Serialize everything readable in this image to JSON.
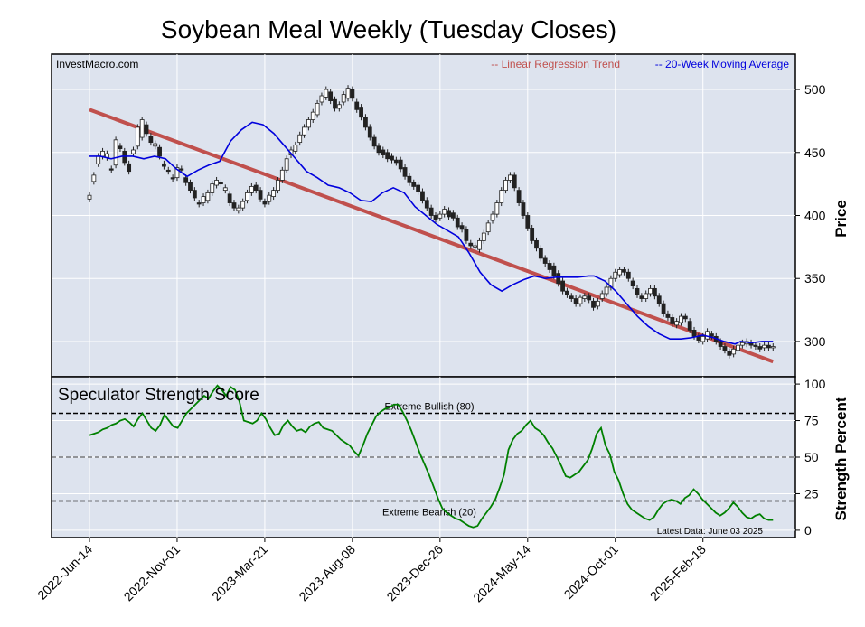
{
  "title": "Soybean Meal Weekly (Tuesday Closes)",
  "watermark": "InvestMacro.com",
  "legend": {
    "regression": "-- Linear Regression Trend",
    "moving_average": "-- 20-Week Moving Average"
  },
  "colors": {
    "background_panel": "#dde3ee",
    "regression": "#c0504d",
    "moving_average": "#0000dd",
    "strength": "#008000",
    "candle_up": "#ffffff",
    "candle_down": "#222222"
  },
  "chart_data": [
    {
      "type": "candlestick",
      "name": "price-panel",
      "ylabel": "Price",
      "ylim": [
        272,
        528
      ],
      "yticks": [
        300,
        350,
        400,
        450,
        500
      ],
      "grid": true,
      "legend_position": "top-right",
      "x_ticks": [
        "2022-Jun-14",
        "2022-Nov-01",
        "2023-Mar-21",
        "2023-Aug-08",
        "2023-Dec-26",
        "2024-May-14",
        "2024-Oct-01",
        "2025-Feb-18"
      ],
      "weeks": 156,
      "regression": {
        "start": 484,
        "end": 284
      },
      "moving_average": [
        [
          0,
          447
        ],
        [
          4,
          447
        ],
        [
          8,
          445
        ],
        [
          12,
          447
        ],
        [
          16,
          447
        ],
        [
          20,
          445
        ],
        [
          24,
          447
        ],
        [
          28,
          445
        ],
        [
          32,
          437
        ],
        [
          36,
          431
        ],
        [
          40,
          436
        ],
        [
          44,
          440
        ],
        [
          48,
          443
        ],
        [
          52,
          459
        ],
        [
          56,
          468
        ],
        [
          60,
          474
        ],
        [
          64,
          472
        ],
        [
          68,
          465
        ],
        [
          72,
          455
        ],
        [
          76,
          445
        ],
        [
          80,
          435
        ],
        [
          84,
          430
        ],
        [
          88,
          424
        ],
        [
          92,
          422
        ],
        [
          96,
          418
        ],
        [
          100,
          412
        ],
        [
          104,
          411
        ],
        [
          108,
          418
        ],
        [
          112,
          422
        ],
        [
          116,
          418
        ],
        [
          120,
          407
        ],
        [
          124,
          400
        ],
        [
          128,
          393
        ],
        [
          132,
          388
        ],
        [
          136,
          383
        ],
        [
          140,
          370
        ],
        [
          144,
          355
        ],
        [
          148,
          345
        ],
        [
          152,
          340
        ],
        [
          156,
          345
        ],
        [
          160,
          349
        ],
        [
          164,
          352
        ],
        [
          168,
          350
        ],
        [
          172,
          351
        ],
        [
          176,
          351
        ],
        [
          180,
          351
        ],
        [
          184,
          352
        ],
        [
          186,
          352
        ],
        [
          190,
          348
        ],
        [
          194,
          340
        ],
        [
          198,
          330
        ],
        [
          202,
          320
        ],
        [
          206,
          312
        ],
        [
          210,
          306
        ],
        [
          214,
          302
        ],
        [
          218,
          302
        ],
        [
          222,
          303
        ],
        [
          226,
          305
        ],
        [
          230,
          303
        ],
        [
          234,
          300
        ],
        [
          238,
          298
        ],
        [
          240,
          300
        ],
        [
          244,
          299
        ],
        [
          248,
          300
        ],
        [
          252,
          300
        ]
      ],
      "candles": [
        [
          413,
          416
        ],
        [
          427,
          432
        ],
        [
          441,
          447
        ],
        [
          447,
          451
        ],
        [
          446,
          449
        ],
        [
          437,
          436
        ],
        [
          440,
          460
        ],
        [
          455,
          453
        ],
        [
          451,
          442
        ],
        [
          441,
          435
        ],
        [
          449,
          452
        ],
        [
          455,
          470
        ],
        [
          462,
          476
        ],
        [
          472,
          465
        ],
        [
          463,
          458
        ],
        [
          455,
          457
        ],
        [
          454,
          447
        ],
        [
          441,
          439
        ],
        [
          436,
          435
        ],
        [
          430,
          429
        ],
        [
          430,
          438
        ],
        [
          437,
          436
        ],
        [
          430,
          426
        ],
        [
          426,
          420
        ],
        [
          420,
          414
        ],
        [
          410,
          409
        ],
        [
          410,
          415
        ],
        [
          412,
          418
        ],
        [
          418,
          425
        ],
        [
          424,
          428
        ],
        [
          426,
          425
        ],
        [
          420,
          422
        ],
        [
          417,
          410
        ],
        [
          410,
          406
        ],
        [
          404,
          406
        ],
        [
          406,
          411
        ],
        [
          412,
          418
        ],
        [
          418,
          423
        ],
        [
          424,
          420
        ],
        [
          420,
          413
        ],
        [
          411,
          409
        ],
        [
          411,
          416
        ],
        [
          415,
          420
        ],
        [
          420,
          428
        ],
        [
          428,
          436
        ],
        [
          436,
          445
        ],
        [
          448,
          452
        ],
        [
          451,
          456
        ],
        [
          458,
          464
        ],
        [
          464,
          470
        ],
        [
          470,
          476
        ],
        [
          476,
          482
        ],
        [
          480,
          489
        ],
        [
          490,
          495
        ],
        [
          494,
          500
        ],
        [
          498,
          491
        ],
        [
          492,
          485
        ],
        [
          485,
          488
        ],
        [
          490,
          496
        ],
        [
          493,
          501
        ],
        [
          500,
          493
        ],
        [
          490,
          484
        ],
        [
          486,
          478
        ],
        [
          478,
          470
        ],
        [
          470,
          462
        ],
        [
          462,
          455
        ],
        [
          455,
          450
        ],
        [
          452,
          448
        ],
        [
          450,
          445
        ],
        [
          447,
          444
        ],
        [
          444,
          442
        ],
        [
          444,
          437
        ],
        [
          438,
          431
        ],
        [
          431,
          426
        ],
        [
          426,
          423
        ],
        [
          424,
          419
        ],
        [
          419,
          412
        ],
        [
          412,
          406
        ],
        [
          406,
          400
        ],
        [
          400,
          397
        ],
        [
          398,
          401
        ],
        [
          401,
          405
        ],
        [
          404,
          399
        ],
        [
          402,
          398
        ],
        [
          398,
          391
        ],
        [
          392,
          389
        ],
        [
          389,
          380
        ],
        [
          378,
          376
        ],
        [
          375,
          376
        ],
        [
          373,
          380
        ],
        [
          380,
          386
        ],
        [
          387,
          394
        ],
        [
          396,
          401
        ],
        [
          401,
          410
        ],
        [
          410,
          420
        ],
        [
          420,
          428
        ],
        [
          428,
          432
        ],
        [
          432,
          422
        ],
        [
          420,
          410
        ],
        [
          410,
          400
        ],
        [
          400,
          390
        ],
        [
          390,
          380
        ],
        [
          380,
          374
        ],
        [
          374,
          366
        ],
        [
          366,
          362
        ],
        [
          362,
          357
        ],
        [
          360,
          352
        ],
        [
          354,
          346
        ],
        [
          348,
          340
        ],
        [
          340,
          337
        ],
        [
          336,
          334
        ],
        [
          334,
          330
        ],
        [
          330,
          335
        ],
        [
          334,
          336
        ],
        [
          336,
          333
        ],
        [
          332,
          327
        ],
        [
          328,
          332
        ],
        [
          334,
          338
        ],
        [
          338,
          343
        ],
        [
          343,
          350
        ],
        [
          350,
          355
        ],
        [
          353,
          357
        ],
        [
          357,
          355
        ],
        [
          355,
          350
        ],
        [
          348,
          344
        ],
        [
          342,
          337
        ],
        [
          336,
          334
        ],
        [
          334,
          338
        ],
        [
          338,
          342
        ],
        [
          342,
          336
        ],
        [
          336,
          330
        ],
        [
          330,
          322
        ],
        [
          322,
          319
        ],
        [
          319,
          314
        ],
        [
          313,
          316
        ],
        [
          315,
          320
        ],
        [
          320,
          318
        ],
        [
          316,
          309
        ],
        [
          309,
          304
        ],
        [
          304,
          301
        ],
        [
          300,
          304
        ],
        [
          302,
          308
        ],
        [
          306,
          304
        ],
        [
          304,
          300
        ],
        [
          300,
          296
        ],
        [
          296,
          293
        ],
        [
          292,
          289
        ],
        [
          290,
          294
        ],
        [
          293,
          297
        ],
        [
          297,
          299
        ],
        [
          298,
          300
        ],
        [
          299,
          297
        ],
        [
          297,
          296
        ],
        [
          296,
          294
        ],
        [
          295,
          297
        ],
        [
          297,
          295
        ],
        [
          295,
          296
        ]
      ]
    },
    {
      "type": "line",
      "name": "strength-panel",
      "title": "Speculator Strength Score",
      "ylabel": "Strength Percent",
      "ylim": [
        -5,
        105
      ],
      "yticks": [
        0,
        25,
        50,
        75,
        100
      ],
      "annotations": [
        {
          "label": "Extreme Bullish (80)",
          "value": 80
        },
        {
          "label": "Extreme Bearish (20)",
          "value": 20
        }
      ],
      "midline": 50,
      "latest_note": "Latest Data: June 03 2025",
      "weeks": 156,
      "values": [
        65,
        66,
        67,
        69,
        70,
        72,
        73,
        75,
        76,
        74,
        71,
        76,
        80,
        75,
        70,
        68,
        72,
        79,
        75,
        71,
        70,
        75,
        80,
        83,
        86,
        89,
        92,
        90,
        95,
        99,
        96,
        92,
        98,
        96,
        88,
        75,
        74,
        73,
        75,
        80,
        76,
        70,
        65,
        66,
        72,
        75,
        71,
        68,
        69,
        67,
        71,
        73,
        74,
        70,
        69,
        68,
        65,
        62,
        60,
        58,
        54,
        51,
        58,
        66,
        72,
        78,
        81,
        83,
        84,
        86,
        86,
        81,
        75,
        68,
        60,
        52,
        45,
        38,
        30,
        22,
        15,
        12,
        10,
        8,
        7,
        5,
        3,
        2,
        3,
        8,
        12,
        16,
        21,
        29,
        38,
        55,
        62,
        66,
        68,
        72,
        75,
        70,
        68,
        65,
        60,
        56,
        50,
        44,
        37,
        36,
        38,
        40,
        44,
        48,
        56,
        66,
        70,
        58,
        52,
        40,
        34,
        25,
        18,
        14,
        12,
        10,
        8,
        7,
        9,
        14,
        18,
        20,
        21,
        20,
        18,
        22,
        24,
        28,
        25,
        21,
        18,
        15,
        12,
        10,
        12,
        15,
        19,
        16,
        12,
        9,
        8,
        10,
        11,
        8,
        7,
        7
      ]
    }
  ]
}
